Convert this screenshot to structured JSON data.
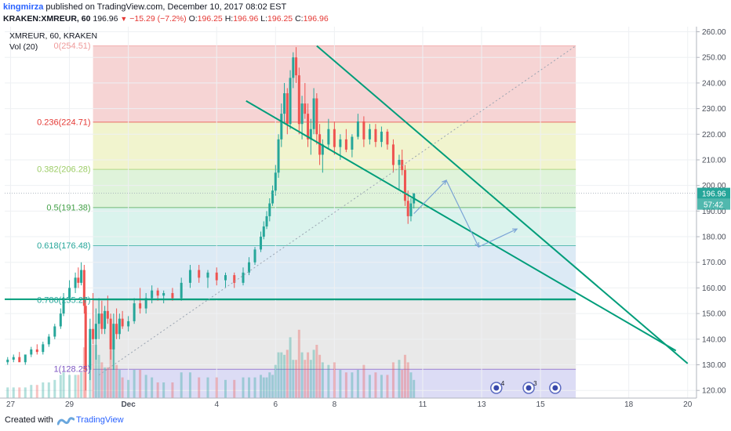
{
  "header": {
    "author": "kingmirza",
    "published_text": "published on TradingView.com, December 10, 2017 08:02 EST",
    "symbol_line": "KRAKEN:XMREUR, 60",
    "last_price": "196.96",
    "change": "−15.29 (−7.2%)",
    "ohlc": {
      "o_label": "O:",
      "o": "196.25",
      "h_label": "H:",
      "h": "196.96",
      "l_label": "L:",
      "l": "196.25",
      "c_label": "C:",
      "c": "196.96"
    }
  },
  "legend": {
    "title": "XMREUR, 60, KRAKEN",
    "volume": "Vol (20)"
  },
  "footer": {
    "created_with": "Created with",
    "brand": "TradingView"
  },
  "colors": {
    "up": "#26a69a",
    "down": "#ef5350",
    "trend": "#009d7a",
    "projection": "#7aa3d6",
    "zone_0": "#f4cccc",
    "zone_1": "#eef2c6",
    "zone_2": "#d9f1d4",
    "zone_3": "#d4f1ea",
    "zone_4": "#d6e6f3",
    "zone_5": "#e5e5e5",
    "zone_6": "#d6d6f3"
  },
  "chart_data": {
    "type": "candlestick",
    "title": "XMREUR, 60, KRAKEN",
    "y_axis": {
      "ylim": [
        117,
        262
      ],
      "ticks": [
        "120.00",
        "130.00",
        "140.00",
        "150.00",
        "160.00",
        "170.00",
        "180.00",
        "190.00",
        "200.00",
        "210.00",
        "220.00",
        "230.00",
        "240.00",
        "250.00",
        "260.00"
      ],
      "position": "right"
    },
    "x_axis": {
      "ticks": [
        "27",
        "29",
        "Dec",
        "4",
        "6",
        "8",
        "11",
        "13",
        "15",
        "18",
        "20"
      ],
      "tick_days": [
        -4,
        -2,
        0,
        3,
        5,
        7,
        10,
        12,
        14,
        17,
        19
      ],
      "xlim": [
        -4.2,
        19.3
      ]
    },
    "current_price": {
      "value": 196.96,
      "label": "196.96",
      "countdown": "57:42"
    },
    "fibonacci": {
      "start_day": -1.2,
      "end_day": 15.2,
      "levels": [
        {
          "ratio_label": "0",
          "price": 254.51,
          "label": "0(254.51)",
          "color": "#ef9a9a"
        },
        {
          "ratio_label": "0.236",
          "price": 224.71,
          "label": "0.236(224.71)",
          "color": "#e53935"
        },
        {
          "ratio_label": "0.382",
          "price": 206.28,
          "label": "0.382(206.28)",
          "color": "#9ccc65"
        },
        {
          "ratio_label": "0.5",
          "price": 191.38,
          "label": "0.5(191.38)",
          "color": "#43a047"
        },
        {
          "ratio_label": "0.618",
          "price": 176.48,
          "label": "0.618(176.48)",
          "color": "#26a69a"
        },
        {
          "ratio_label": "0.786",
          "price": 155.27,
          "label": "0.786(155.27)",
          "color": "#26a69a"
        },
        {
          "ratio_label": "1",
          "price": 128.25,
          "label": "1(128.25)",
          "color": "#7e57c2"
        }
      ]
    },
    "candles": [
      [
        -4.1,
        131,
        133,
        130,
        132
      ],
      [
        -3.9,
        132,
        134,
        131,
        133
      ],
      [
        -3.7,
        133,
        135,
        132,
        131
      ],
      [
        -3.5,
        131,
        133,
        130,
        134
      ],
      [
        -3.3,
        134,
        137,
        133,
        136
      ],
      [
        -3.1,
        136,
        138,
        134,
        135
      ],
      [
        -2.9,
        135,
        139,
        134,
        138
      ],
      [
        -2.7,
        138,
        142,
        137,
        141
      ],
      [
        -2.5,
        141,
        146,
        140,
        145
      ],
      [
        -2.3,
        145,
        152,
        144,
        150
      ],
      [
        -2.2,
        150,
        158,
        149,
        156
      ],
      [
        -2.0,
        156,
        163,
        155,
        160
      ],
      [
        -1.8,
        160,
        166,
        158,
        164
      ],
      [
        -1.7,
        164,
        168,
        160,
        162
      ],
      [
        -1.6,
        162,
        170,
        161,
        167
      ],
      [
        -1.5,
        167,
        169,
        150,
        153
      ],
      [
        -1.45,
        153,
        156,
        120,
        128
      ],
      [
        -1.3,
        128,
        148,
        124,
        144
      ],
      [
        -1.2,
        144,
        158,
        138,
        140
      ],
      [
        -1.1,
        140,
        152,
        132,
        146
      ],
      [
        -1.0,
        146,
        156,
        140,
        150
      ],
      [
        -0.9,
        150,
        155,
        142,
        144
      ],
      [
        -0.8,
        144,
        153,
        142,
        151
      ],
      [
        -0.7,
        151,
        157,
        146,
        148
      ],
      [
        -0.6,
        148,
        150,
        132,
        136
      ],
      [
        -0.5,
        136,
        150,
        128,
        146
      ],
      [
        -0.4,
        146,
        152,
        140,
        142
      ],
      [
        -0.3,
        142,
        150,
        140,
        148
      ],
      [
        -0.2,
        148,
        151,
        144,
        145
      ],
      [
        0.0,
        145,
        149,
        143,
        147
      ],
      [
        0.2,
        147,
        156,
        146,
        154
      ],
      [
        0.4,
        154,
        160,
        150,
        152
      ],
      [
        0.6,
        152,
        158,
        150,
        156
      ],
      [
        0.8,
        156,
        161,
        154,
        159
      ],
      [
        1.0,
        159,
        160,
        155,
        157
      ],
      [
        1.2,
        157,
        159,
        154,
        158
      ],
      [
        1.5,
        158,
        160,
        155,
        156
      ],
      [
        1.8,
        156,
        164,
        155,
        162
      ],
      [
        2.1,
        162,
        169,
        160,
        167
      ],
      [
        2.4,
        167,
        169,
        162,
        164
      ],
      [
        2.7,
        164,
        167,
        160,
        166
      ],
      [
        3.0,
        166,
        168,
        161,
        163
      ],
      [
        3.3,
        163,
        166,
        160,
        165
      ],
      [
        3.6,
        165,
        166,
        160,
        162
      ],
      [
        3.9,
        162,
        168,
        161,
        166
      ],
      [
        4.1,
        166,
        172,
        165,
        170
      ],
      [
        4.3,
        170,
        176,
        169,
        175
      ],
      [
        4.5,
        175,
        182,
        174,
        180
      ],
      [
        4.6,
        180,
        186,
        179,
        184
      ],
      [
        4.7,
        184,
        190,
        183,
        188
      ],
      [
        4.8,
        188,
        195,
        186,
        193
      ],
      [
        4.9,
        193,
        200,
        192,
        198
      ],
      [
        5.0,
        198,
        208,
        196,
        205
      ],
      [
        5.1,
        205,
        220,
        203,
        218
      ],
      [
        5.2,
        218,
        232,
        215,
        228
      ],
      [
        5.3,
        228,
        240,
        224,
        236
      ],
      [
        5.4,
        236,
        238,
        220,
        224
      ],
      [
        5.5,
        224,
        245,
        222,
        242
      ],
      [
        5.6,
        242,
        252,
        238,
        250
      ],
      [
        5.7,
        250,
        254,
        240,
        243
      ],
      [
        5.8,
        243,
        246,
        220,
        224
      ],
      [
        5.9,
        224,
        235,
        218,
        232
      ],
      [
        6.0,
        232,
        240,
        226,
        228
      ],
      [
        6.1,
        228,
        232,
        215,
        218
      ],
      [
        6.2,
        218,
        226,
        212,
        222
      ],
      [
        6.3,
        222,
        238,
        220,
        234
      ],
      [
        6.4,
        234,
        236,
        216,
        220
      ],
      [
        6.5,
        220,
        224,
        208,
        212
      ],
      [
        6.6,
        212,
        218,
        205,
        216
      ],
      [
        6.8,
        216,
        226,
        214,
        222
      ],
      [
        7.0,
        222,
        225,
        212,
        215
      ],
      [
        7.2,
        215,
        220,
        210,
        218
      ],
      [
        7.4,
        218,
        222,
        213,
        214
      ],
      [
        7.6,
        214,
        220,
        211,
        219
      ],
      [
        7.8,
        219,
        228,
        218,
        225
      ],
      [
        8.0,
        225,
        227,
        215,
        218
      ],
      [
        8.2,
        218,
        224,
        216,
        222
      ],
      [
        8.4,
        222,
        224,
        215,
        217
      ],
      [
        8.6,
        217,
        223,
        215,
        221
      ],
      [
        8.8,
        221,
        222,
        214,
        216
      ],
      [
        9.0,
        216,
        218,
        205,
        208
      ],
      [
        9.2,
        208,
        212,
        198,
        210
      ],
      [
        9.3,
        210,
        214,
        204,
        206
      ],
      [
        9.4,
        206,
        208,
        192,
        194
      ],
      [
        9.5,
        194,
        198,
        185,
        188
      ],
      [
        9.6,
        188,
        195,
        186,
        193
      ],
      [
        9.7,
        193,
        197,
        191,
        196.96
      ]
    ],
    "trend_lines": [
      {
        "name": "upper",
        "from": [
          6.4,
          254.5
        ],
        "to": [
          19.0,
          130.5
        ]
      },
      {
        "name": "lower",
        "from": [
          4.0,
          233.0
        ],
        "to": [
          18.6,
          135.5
        ]
      },
      {
        "name": "horizontal",
        "from": [
          -4.2,
          155.6
        ],
        "to": [
          15.2,
          155.6
        ]
      },
      {
        "name": "dotted",
        "from": [
          -1.0,
          126.0
        ],
        "to": [
          15.2,
          254.5
        ]
      }
    ],
    "projection_path": [
      [
        9.7,
        189
      ],
      [
        10.8,
        202
      ],
      [
        11.9,
        176
      ],
      [
        13.2,
        183
      ]
    ],
    "event_badges": [
      {
        "day": 12.5,
        "label": "4"
      },
      {
        "day": 13.6,
        "label": "3"
      },
      {
        "day": 14.5,
        "label": ""
      }
    ]
  }
}
